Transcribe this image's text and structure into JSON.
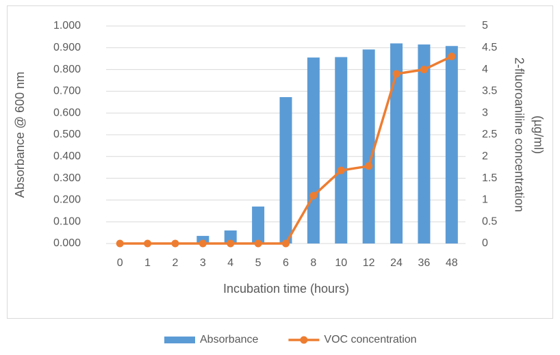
{
  "chart_data": {
    "type": "bar-line",
    "categories": [
      "0",
      "1",
      "2",
      "3",
      "4",
      "5",
      "6",
      "8",
      "10",
      "12",
      "24",
      "36",
      "48"
    ],
    "series": [
      {
        "name": "Absorbance",
        "type": "bar",
        "color": "#5b9bd5",
        "values": [
          0,
          0,
          0,
          0.035,
          0.06,
          0.17,
          0.673,
          0.855,
          0.857,
          0.892,
          0.92,
          0.915,
          0.908
        ]
      },
      {
        "name": "VOC concentration",
        "type": "line",
        "axis": "y2",
        "color": "#ed7d31",
        "values": [
          0,
          0,
          0,
          0,
          0,
          0,
          0,
          1.1,
          1.68,
          1.78,
          3.9,
          4.0,
          4.3
        ]
      }
    ],
    "xlabel": "Incubation time (hours)",
    "ylabel": "Absorbance @ 600 nm",
    "y2label": [
      "2-fluoroaniline concentration",
      "(µg/ml)"
    ],
    "ylim": [
      0,
      1
    ],
    "yticks": [
      {
        "value": 0,
        "label": "0.000"
      },
      {
        "value": 0.1,
        "label": "0.100"
      },
      {
        "value": 0.2,
        "label": "0.200"
      },
      {
        "value": 0.3,
        "label": "0.300"
      },
      {
        "value": 0.4,
        "label": "0.400"
      },
      {
        "value": 0.5,
        "label": "0.500"
      },
      {
        "value": 0.6,
        "label": "0.600"
      },
      {
        "value": 0.7,
        "label": "0.700"
      },
      {
        "value": 0.8,
        "label": "0.800"
      },
      {
        "value": 0.9,
        "label": "0.900"
      },
      {
        "value": 1,
        "label": "1.000"
      }
    ],
    "y2lim": [
      0,
      5
    ],
    "y2ticks": [
      0,
      0.5,
      1,
      1.5,
      2,
      2.5,
      3,
      3.5,
      4,
      4.5,
      5
    ],
    "grid": true,
    "legend": "bottom"
  }
}
